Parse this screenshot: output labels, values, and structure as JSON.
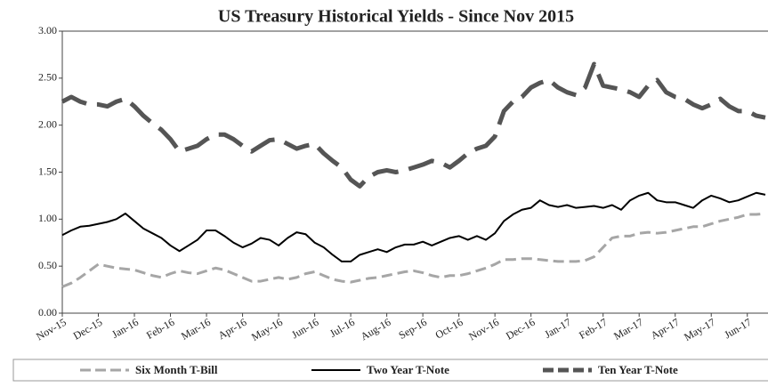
{
  "chart_data": {
    "type": "line",
    "title": "US Treasury Historical Yields - Since Nov 2015",
    "categories": [
      "Nov-15",
      null,
      null,
      null,
      "Dec-15",
      null,
      null,
      null,
      "Jan-16",
      null,
      null,
      null,
      "Feb-16",
      null,
      null,
      null,
      "Mar-16",
      null,
      null,
      null,
      "Apr-16",
      null,
      null,
      null,
      "May-16",
      null,
      null,
      null,
      "Jun-16",
      null,
      null,
      null,
      "Jul-16",
      null,
      null,
      null,
      "Aug-16",
      null,
      null,
      null,
      "Sep-16",
      null,
      null,
      null,
      "Oct-16",
      null,
      null,
      null,
      "Nov-16",
      null,
      null,
      null,
      "Dec-16",
      null,
      null,
      null,
      "Jan-17",
      null,
      null,
      null,
      "Feb-17",
      null,
      null,
      null,
      "Mar-17",
      null,
      null,
      null,
      "Apr-17",
      null,
      null,
      null,
      "May-17",
      null,
      null,
      null,
      "Jun-17",
      null,
      null
    ],
    "series": [
      {
        "name": "Six Month T-Bill",
        "color": "#a6a6a6",
        "style": "dashed",
        "values": [
          0.28,
          0.32,
          0.38,
          0.45,
          0.52,
          0.5,
          0.48,
          0.47,
          0.46,
          0.43,
          0.4,
          0.38,
          0.42,
          0.45,
          0.43,
          0.42,
          0.45,
          0.48,
          0.46,
          0.42,
          0.38,
          0.34,
          0.34,
          0.36,
          0.38,
          0.36,
          0.38,
          0.42,
          0.44,
          0.4,
          0.36,
          0.34,
          0.33,
          0.35,
          0.37,
          0.38,
          0.4,
          0.42,
          0.44,
          0.45,
          0.43,
          0.4,
          0.38,
          0.4,
          0.4,
          0.42,
          0.45,
          0.48,
          0.52,
          0.57,
          0.57,
          0.58,
          0.58,
          0.57,
          0.56,
          0.55,
          0.55,
          0.55,
          0.56,
          0.6,
          0.7,
          0.8,
          0.82,
          0.82,
          0.85,
          0.86,
          0.85,
          0.86,
          0.88,
          0.9,
          0.92,
          0.92,
          0.95,
          0.98,
          1.0,
          1.02,
          1.05,
          1.05,
          1.06
        ]
      },
      {
        "name": "Two Year T-Note",
        "color": "#000000",
        "style": "solid",
        "values": [
          0.83,
          0.88,
          0.92,
          0.93,
          0.95,
          0.97,
          1.0,
          1.06,
          0.98,
          0.9,
          0.85,
          0.8,
          0.72,
          0.66,
          0.72,
          0.78,
          0.88,
          0.88,
          0.82,
          0.75,
          0.7,
          0.74,
          0.8,
          0.78,
          0.72,
          0.8,
          0.86,
          0.84,
          0.75,
          0.7,
          0.62,
          0.55,
          0.55,
          0.62,
          0.65,
          0.68,
          0.65,
          0.7,
          0.73,
          0.73,
          0.76,
          0.72,
          0.76,
          0.8,
          0.82,
          0.78,
          0.82,
          0.78,
          0.85,
          0.98,
          1.05,
          1.1,
          1.12,
          1.2,
          1.15,
          1.13,
          1.15,
          1.12,
          1.13,
          1.14,
          1.12,
          1.15,
          1.1,
          1.2,
          1.25,
          1.28,
          1.2,
          1.18,
          1.18,
          1.15,
          1.12,
          1.2,
          1.25,
          1.22,
          1.18,
          1.2,
          1.24,
          1.28,
          1.26
        ]
      },
      {
        "name": "Ten Year T-Note",
        "color": "#555555",
        "style": "thick-dashed",
        "values": [
          2.25,
          2.3,
          2.25,
          2.22,
          2.22,
          2.2,
          2.25,
          2.28,
          2.2,
          2.1,
          2.02,
          1.95,
          1.85,
          1.72,
          1.75,
          1.78,
          1.85,
          1.9,
          1.9,
          1.85,
          1.78,
          1.72,
          1.78,
          1.84,
          1.85,
          1.8,
          1.75,
          1.78,
          1.8,
          1.7,
          1.62,
          1.55,
          1.42,
          1.35,
          1.45,
          1.5,
          1.52,
          1.5,
          1.52,
          1.55,
          1.58,
          1.62,
          1.6,
          1.55,
          1.62,
          1.7,
          1.75,
          1.78,
          1.88,
          2.15,
          2.25,
          2.3,
          2.4,
          2.45,
          2.48,
          2.4,
          2.35,
          2.32,
          2.4,
          2.65,
          2.42,
          2.4,
          2.38,
          2.35,
          2.3,
          2.42,
          2.48,
          2.35,
          2.3,
          2.28,
          2.22,
          2.18,
          2.22,
          2.28,
          2.2,
          2.15,
          2.15,
          2.1,
          2.08
        ]
      }
    ],
    "ylim": [
      0,
      3
    ],
    "yticks": [
      {
        "value": 0,
        "label": "0.00"
      },
      {
        "value": 0.5,
        "label": "0.50"
      },
      {
        "value": 1,
        "label": "1.00"
      },
      {
        "value": 1.5,
        "label": "1.50"
      },
      {
        "value": 2,
        "label": "2.00"
      },
      {
        "value": 2.5,
        "label": "2.50"
      },
      {
        "value": 3,
        "label": "3.00"
      }
    ],
    "grid": false,
    "legend": "bottom"
  }
}
